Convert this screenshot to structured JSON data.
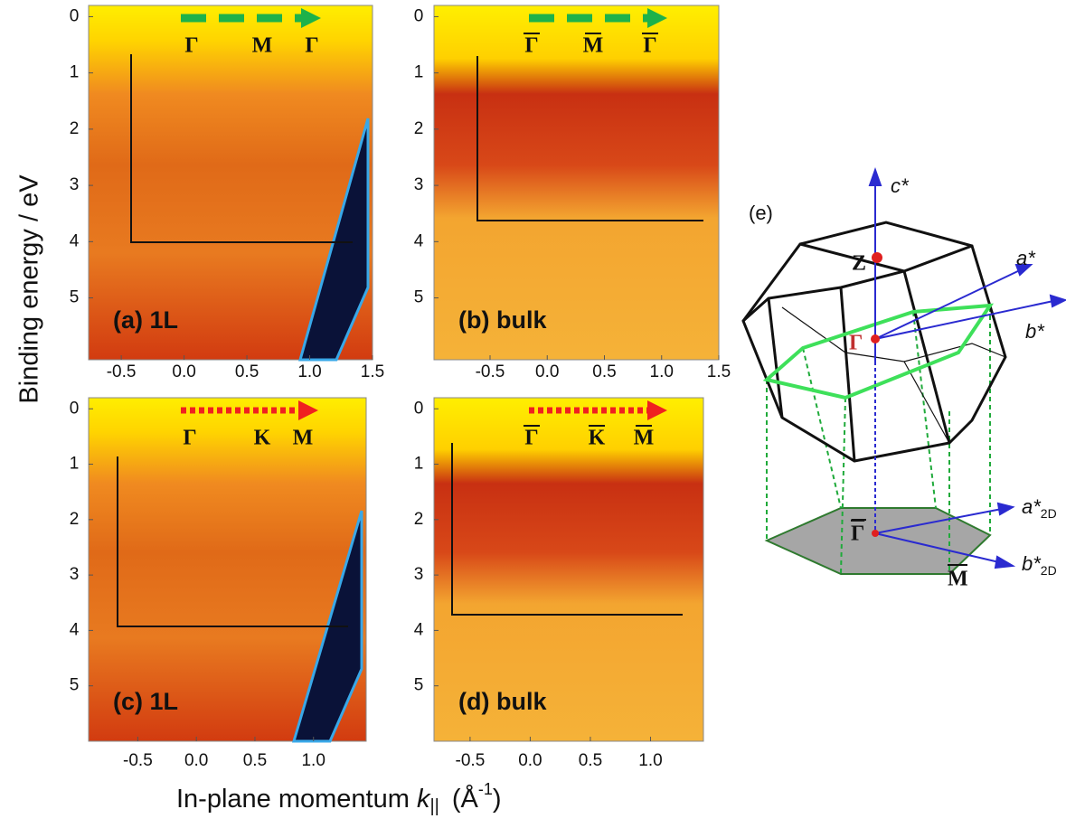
{
  "chart_data": [
    {
      "type": "image",
      "label": "(a) 1L",
      "path_labels": [
        "Γ",
        "M",
        "Γ"
      ],
      "path_bar": false,
      "path_arrow_color": "#1db24a",
      "path_arrow_style": "dashed",
      "xlim": [
        -0.76,
        1.5
      ],
      "ylim": [
        -0.2,
        6.1
      ],
      "xticks": [
        -0.5,
        {
          "value": 0,
          "label": "0.0"
        },
        0.5,
        {
          "value": 1,
          "label": "1.0"
        },
        1.5
      ],
      "yticks": [
        0,
        1,
        2,
        3,
        4,
        5
      ]
    },
    {
      "type": "image",
      "label": "(b) bulk",
      "path_labels": [
        "Γ",
        "M",
        "Γ"
      ],
      "path_bar": true,
      "path_arrow_color": "#1db24a",
      "path_arrow_style": "dashed",
      "xlim": [
        -0.99,
        1.5
      ],
      "ylim": [
        -0.2,
        6.1
      ],
      "xticks": [
        -0.5,
        {
          "value": 0,
          "label": "0.0"
        },
        0.5,
        {
          "value": 1,
          "label": "1.0"
        },
        1.5
      ],
      "yticks": [
        0,
        1,
        2,
        3,
        4,
        5
      ]
    },
    {
      "type": "image",
      "label": "(c) 1L",
      "path_labels": [
        "Γ",
        "K",
        "M"
      ],
      "path_bar": false,
      "path_arrow_color": "#f02020",
      "path_arrow_style": "dotted",
      "xlim": [
        -0.92,
        1.45
      ],
      "ylim": [
        -0.2,
        6.0
      ],
      "xticks": [
        -0.5,
        {
          "value": 0,
          "label": "0.0"
        },
        0.5,
        {
          "value": 1,
          "label": "1.0"
        }
      ],
      "yticks": [
        0,
        1,
        2,
        3,
        4,
        5
      ]
    },
    {
      "type": "image",
      "label": "(d) bulk",
      "path_labels": [
        "Γ",
        "K",
        "M"
      ],
      "path_bar": true,
      "path_arrow_color": "#f02020",
      "path_arrow_style": "dotted",
      "xlim": [
        -0.8,
        1.44
      ],
      "ylim": [
        -0.2,
        6.0
      ],
      "xticks": [
        -0.5,
        {
          "value": 0,
          "label": "0.0"
        },
        0.5,
        {
          "value": 1,
          "label": "1.0"
        }
      ],
      "yticks": [
        0,
        1,
        2,
        3,
        4,
        5
      ]
    }
  ],
  "figure": {
    "ylabel": "Binding energy / eV",
    "xlabel": [
      "In-plane momentum ",
      "k",
      "||",
      "(Å",
      "-1",
      ")"
    ]
  },
  "diagram": {
    "label": "(e)",
    "c_star": "c*",
    "a_star": "a*",
    "b_star": "b*",
    "z": "Z",
    "gamma": "Γ",
    "gamma_bar": "Γ",
    "m_bar": "M",
    "a_2d": [
      "a*",
      "2D"
    ],
    "b_2d": [
      "b*",
      "2D"
    ]
  }
}
